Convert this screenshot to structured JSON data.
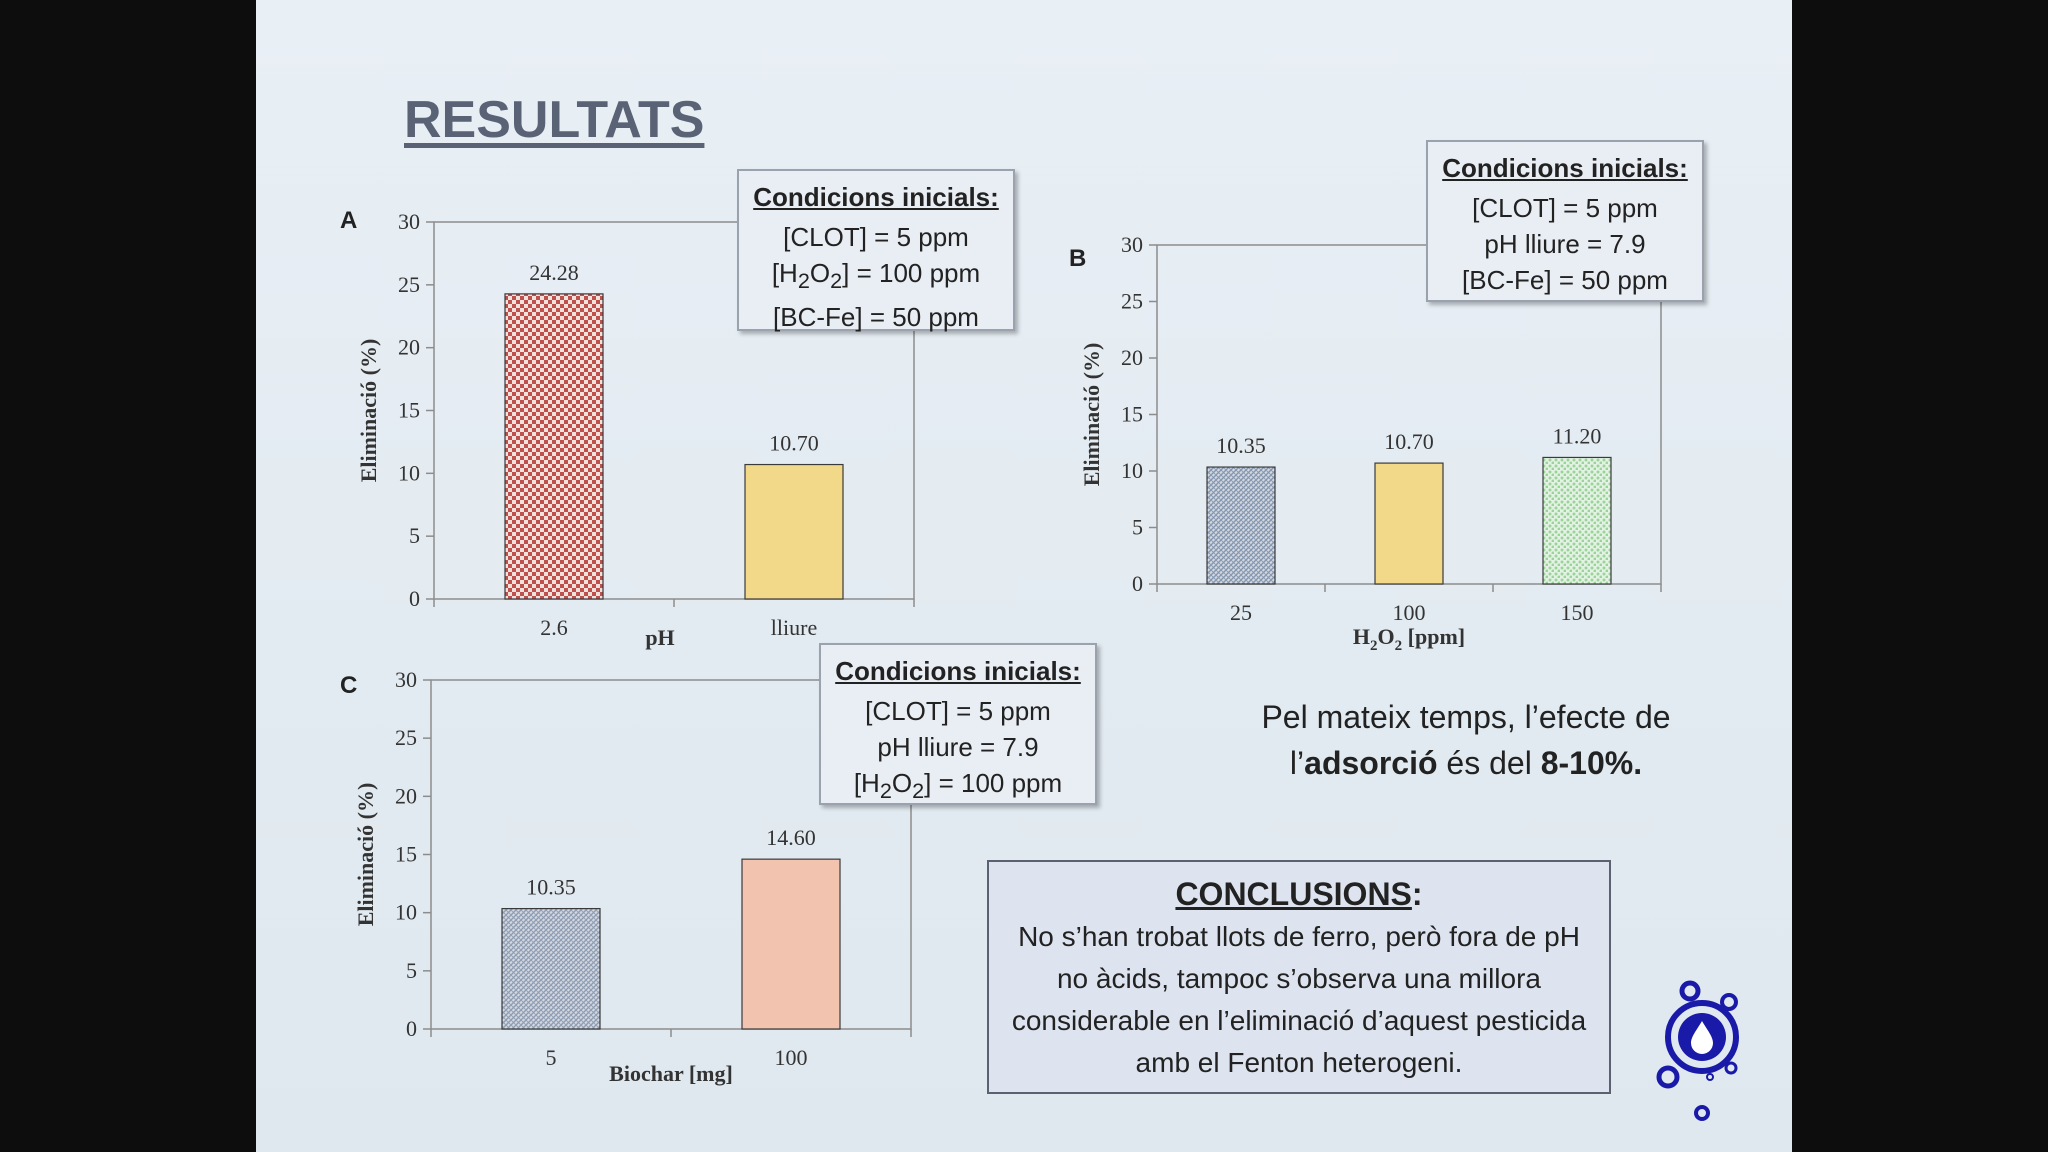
{
  "slide": {
    "title": "RESULTATS",
    "statement": {
      "part1": "Pel mateix temps, l’efecte de",
      "part2": "l’",
      "bold1": "adsorció",
      "part3": " és del ",
      "bold2": "8-10%."
    },
    "conclusions": {
      "title": "CONCLUSIONS",
      "colon": ":",
      "text": "No s’han trobat llots de ferro, però fora de pH no àcids, tampoc s’observa una millora considerable en l’eliminació d’aquest pesticida amb el Fenton heterogeni."
    }
  },
  "panels": {
    "A": {
      "label": "A",
      "conditions": {
        "title": "Condicions inicials:",
        "lines": [
          "[CLOT] = 5 ppm",
          "[H2O2] = 100 ppm",
          "[BC-Fe] = 50 ppm"
        ]
      }
    },
    "B": {
      "label": "B",
      "conditions": {
        "title": "Condicions inicials:",
        "lines": [
          "[CLOT] = 5 ppm",
          "pH lliure = 7.9",
          "[BC-Fe] = 50 ppm"
        ]
      }
    },
    "C": {
      "label": "C",
      "conditions": {
        "title": "Condicions inicials:",
        "lines": [
          "[CLOT] = 5 ppm",
          "pH lliure = 7.9",
          "[H2O2] = 100 ppm"
        ]
      }
    }
  },
  "colors": {
    "ph_acid": "#c0504d",
    "ph_free": "#f2d98a",
    "h2o2_25": "#8597b0",
    "h2o2_100": "#f2d98a",
    "h2o2_150": "#9bd39b",
    "biochar_5": "#8e9db3",
    "biochar_100": "#f2c4b0"
  },
  "chart_data": [
    {
      "type": "bar",
      "panel": "A",
      "categories": [
        "2.6",
        "lliure"
      ],
      "values": [
        24.28,
        10.7
      ],
      "value_labels": [
        "24.28",
        "10.70"
      ],
      "xlabel": "pH",
      "ylabel": "Eliminació (%)",
      "ylim": [
        0,
        30
      ],
      "yticks": [
        0,
        5,
        10,
        15,
        20,
        25,
        30
      ],
      "patterns": [
        "checker",
        "solid"
      ],
      "grid": false
    },
    {
      "type": "bar",
      "panel": "B",
      "categories": [
        "25",
        "100",
        "150"
      ],
      "values": [
        10.35,
        10.7,
        11.2
      ],
      "value_labels": [
        "10.35",
        "10.70",
        "11.20"
      ],
      "xlabel": "H2O2 [ppm]",
      "ylabel": "Eliminació (%)",
      "ylim": [
        0,
        30
      ],
      "yticks": [
        0,
        5,
        10,
        15,
        20,
        25,
        30
      ],
      "patterns": [
        "hatch",
        "solid",
        "dots"
      ],
      "grid": false
    },
    {
      "type": "bar",
      "panel": "C",
      "categories": [
        "5",
        "100"
      ],
      "values": [
        10.35,
        14.6
      ],
      "value_labels": [
        "10.35",
        "14.60"
      ],
      "xlabel": "Biochar [mg]",
      "ylabel": "Eliminació (%)",
      "ylim": [
        0,
        30
      ],
      "yticks": [
        0,
        5,
        10,
        15,
        20,
        25,
        30
      ],
      "patterns": [
        "hatch",
        "solid"
      ],
      "grid": false
    }
  ]
}
